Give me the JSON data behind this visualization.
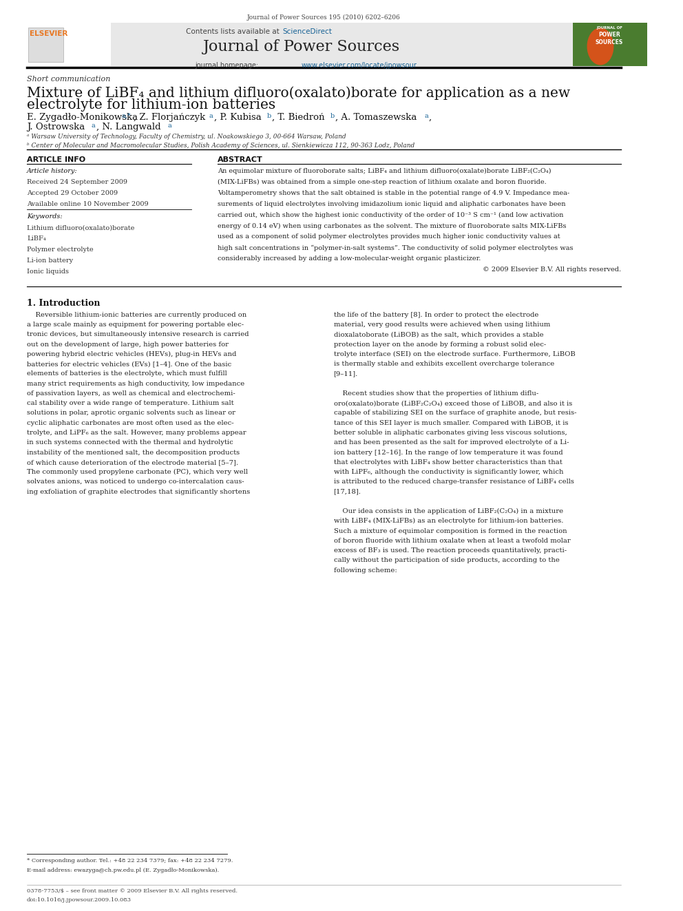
{
  "bg_color": "#ffffff",
  "page_width": 9.92,
  "page_height": 13.23,
  "top_citation": "Journal of Power Sources 195 (2010) 6202–6206",
  "header_bg": "#e8e8e8",
  "header_sciencedirect_color": "#1a6496",
  "journal_name": "Journal of Power Sources",
  "journal_homepage_url_color": "#1a6496",
  "section_label": "Short communication",
  "article_title_line1": "Mixture of LiBF₄ and lithium difluoro(oxalato)borate for application as a new",
  "article_title_line2": "electrolyte for lithium-ion batteries",
  "affil_a": "ᵃ Warsaw University of Technology, Faculty of Chemistry, ul. Noakowskiego 3, 00-664 Warsaw, Poland",
  "affil_b": "ᵇ Center of Molecular and Macromolecular Studies, Polish Academy of Sciences, ul. Sienkiewicza 112, 90-363 Lodz, Poland",
  "article_info_title": "ARTICLE INFO",
  "abstract_title": "ABSTRACT",
  "article_history_label": "Article history:",
  "received": "Received 24 September 2009",
  "accepted": "Accepted 29 October 2009",
  "available": "Available online 10 November 2009",
  "keywords_label": "Keywords:",
  "keyword1": "Lithium difluoro(oxalato)borate",
  "keyword2": "LiBF₄",
  "keyword3": "Polymer electrolyte",
  "keyword4": "Li-ion battery",
  "keyword5": "Ionic liquids",
  "abstract_copyright": "© 2009 Elsevier B.V. All rights reserved.",
  "intro_heading": "1. Introduction",
  "footnote_star": "* Corresponding author. Tel.: +48 22 234 7379; fax: +48 22 234 7279.",
  "footnote_email": "E-mail address: ewazyga@ch.pw.edu.pl (E. Zygadło-Monikowska).",
  "footer_issn": "0378-7753/$ – see front matter © 2009 Elsevier B.V. All rights reserved.",
  "footer_doi": "doi:10.1016/j.jpowsour.2009.10.083",
  "elsevier_color": "#e87722",
  "link_color": "#1a6496"
}
